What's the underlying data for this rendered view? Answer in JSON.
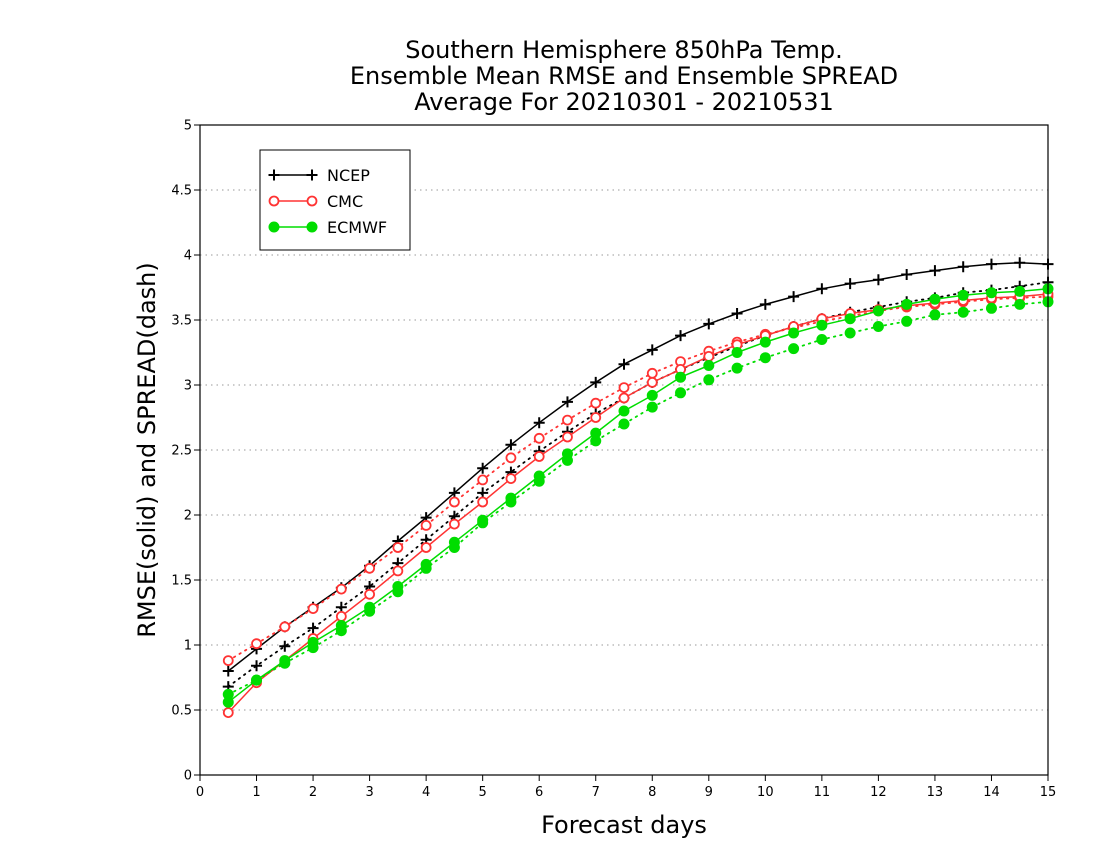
{
  "chart_data": {
    "type": "line",
    "title_lines": [
      "Southern Hemisphere 850hPa Temp.",
      "Ensemble Mean RMSE and Ensemble SPREAD",
      "Average For 20210301 - 20210531"
    ],
    "xlabel": "Forecast days",
    "ylabel": "RMSE(solid) and SPREAD(dash)",
    "xlim": [
      0,
      15
    ],
    "ylim": [
      0,
      5
    ],
    "x_ticks": [
      "0",
      "1",
      "2",
      "3",
      "4",
      "5",
      "6",
      "7",
      "8",
      "9",
      "10",
      "11",
      "12",
      "13",
      "14",
      "15"
    ],
    "y_ticks": [
      "0",
      "0.5",
      "1",
      "1.5",
      "2",
      "2.5",
      "3",
      "3.5",
      "4",
      "4.5",
      "5"
    ],
    "grid": true,
    "legend_position": "top-left",
    "x": [
      0.5,
      1,
      1.5,
      2,
      2.5,
      3,
      3.5,
      4,
      4.5,
      5,
      5.5,
      6,
      6.5,
      7,
      7.5,
      8,
      8.5,
      9,
      9.5,
      10,
      10.5,
      11,
      11.5,
      12,
      12.5,
      13,
      13.5,
      14,
      14.5,
      15
    ],
    "series": [
      {
        "name": "NCEP",
        "color": "#000000",
        "marker": "plus",
        "rmse": [
          0.8,
          0.97,
          1.14,
          1.29,
          1.44,
          1.61,
          1.8,
          1.98,
          2.17,
          2.36,
          2.54,
          2.71,
          2.87,
          3.02,
          3.16,
          3.27,
          3.38,
          3.47,
          3.55,
          3.62,
          3.68,
          3.74,
          3.78,
          3.81,
          3.85,
          3.88,
          3.91,
          3.93,
          3.94,
          3.93
        ],
        "spread": [
          0.68,
          0.84,
          0.99,
          1.13,
          1.29,
          1.45,
          1.63,
          1.81,
          1.99,
          2.17,
          2.33,
          2.49,
          2.64,
          2.78,
          2.9,
          3.02,
          3.12,
          3.21,
          3.3,
          3.38,
          3.45,
          3.51,
          3.56,
          3.6,
          3.64,
          3.67,
          3.71,
          3.73,
          3.76,
          3.79
        ]
      },
      {
        "name": "CMC",
        "color": "#ff3333",
        "marker": "circle-open",
        "rmse": [
          0.48,
          0.71,
          0.88,
          1.05,
          1.22,
          1.39,
          1.57,
          1.75,
          1.93,
          2.1,
          2.28,
          2.45,
          2.6,
          2.75,
          2.9,
          3.02,
          3.12,
          3.22,
          3.31,
          3.38,
          3.45,
          3.51,
          3.55,
          3.58,
          3.61,
          3.63,
          3.65,
          3.67,
          3.68,
          3.7
        ],
        "spread": [
          0.88,
          1.01,
          1.14,
          1.28,
          1.43,
          1.59,
          1.75,
          1.92,
          2.1,
          2.27,
          2.44,
          2.59,
          2.73,
          2.86,
          2.98,
          3.09,
          3.18,
          3.26,
          3.33,
          3.39,
          3.44,
          3.49,
          3.53,
          3.57,
          3.6,
          3.62,
          3.64,
          3.66,
          3.67,
          3.68
        ]
      },
      {
        "name": "ECMWF",
        "color": "#00dd00",
        "marker": "circle-filled",
        "rmse": [
          0.56,
          0.73,
          0.88,
          1.02,
          1.15,
          1.29,
          1.45,
          1.62,
          1.79,
          1.96,
          2.13,
          2.3,
          2.47,
          2.63,
          2.8,
          2.92,
          3.06,
          3.15,
          3.25,
          3.33,
          3.4,
          3.46,
          3.51,
          3.57,
          3.62,
          3.66,
          3.69,
          3.71,
          3.72,
          3.74
        ],
        "spread": [
          0.62,
          0.73,
          0.86,
          0.98,
          1.11,
          1.26,
          1.41,
          1.59,
          1.75,
          1.94,
          2.1,
          2.26,
          2.42,
          2.57,
          2.7,
          2.83,
          2.94,
          3.04,
          3.13,
          3.21,
          3.28,
          3.35,
          3.4,
          3.45,
          3.49,
          3.54,
          3.56,
          3.59,
          3.62,
          3.64
        ]
      }
    ]
  }
}
